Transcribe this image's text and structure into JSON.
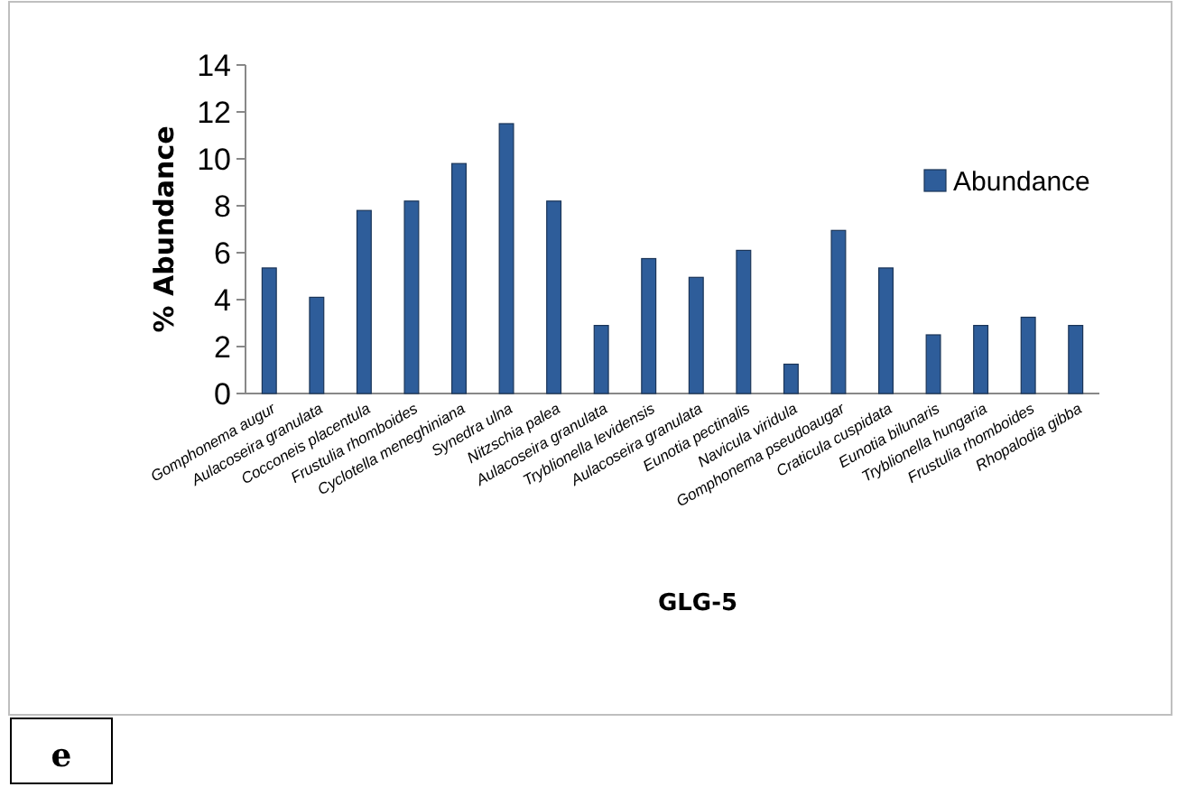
{
  "chart_data": {
    "type": "bar",
    "xlabel": "GLG-5",
    "ylabel": "%  Abundance",
    "categories": [
      "Gomphonema augur",
      "Aulacoseira granulata",
      "Cocconeis placentula",
      "Frustulia rhomboides",
      "Cyclotella meneghiniana",
      "Synedra ulna",
      "Nitzschia palea",
      "Aulacoseira granulata",
      "Tryblionella levidensis",
      "Aulacoseira granulata",
      "Eunotia pectinalis",
      "Navicula viridula",
      "Gomphonema pseudoaugar",
      "Craticula cuspidata",
      "Eunotia bilunaris",
      "Tryblionella hungaria",
      "Frustulia rhomboides",
      "Rhopalodia gibba"
    ],
    "series": [
      {
        "name": "Abundance",
        "color": "#2e5d9a",
        "values": [
          5.35,
          4.1,
          7.8,
          8.2,
          9.8,
          11.5,
          8.2,
          2.9,
          5.75,
          4.95,
          6.1,
          1.25,
          6.95,
          5.35,
          2.5,
          2.9,
          3.25,
          2.9
        ]
      }
    ],
    "ylim": [
      0,
      14
    ],
    "yticks": [
      0,
      2,
      4,
      6,
      8,
      10,
      12,
      14
    ],
    "grid": false,
    "legend": "right",
    "annotations": [
      "e"
    ]
  }
}
